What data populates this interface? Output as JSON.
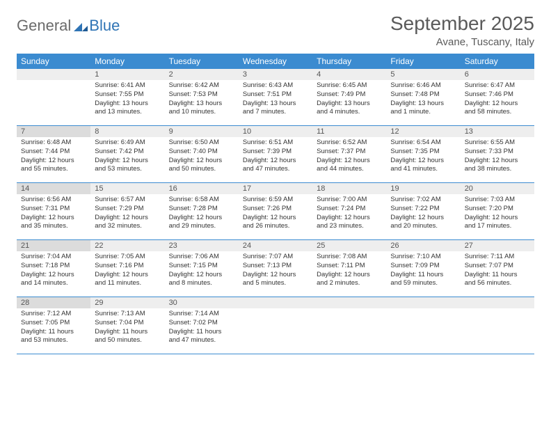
{
  "logo": {
    "general": "General",
    "blue": "Blue"
  },
  "title": "September 2025",
  "location": "Avane, Tuscany, Italy",
  "colors": {
    "header_bg": "#3b8bd0",
    "header_text": "#ffffff",
    "daynum_bg": "#eeeeee",
    "daynum_bg_dark": "#dcdcdc",
    "border": "#3b8bd0",
    "text": "#333333",
    "title_text": "#5a5a5a",
    "logo_gray": "#6b6b6b",
    "logo_blue": "#2f74b5"
  },
  "weekdays": [
    "Sunday",
    "Monday",
    "Tuesday",
    "Wednesday",
    "Thursday",
    "Friday",
    "Saturday"
  ],
  "weeks": [
    [
      {
        "blank": true
      },
      {
        "day": "1",
        "sunrise": "6:41 AM",
        "sunset": "7:55 PM",
        "daylight": "13 hours and 13 minutes."
      },
      {
        "day": "2",
        "sunrise": "6:42 AM",
        "sunset": "7:53 PM",
        "daylight": "13 hours and 10 minutes."
      },
      {
        "day": "3",
        "sunrise": "6:43 AM",
        "sunset": "7:51 PM",
        "daylight": "13 hours and 7 minutes."
      },
      {
        "day": "4",
        "sunrise": "6:45 AM",
        "sunset": "7:49 PM",
        "daylight": "13 hours and 4 minutes."
      },
      {
        "day": "5",
        "sunrise": "6:46 AM",
        "sunset": "7:48 PM",
        "daylight": "13 hours and 1 minute."
      },
      {
        "day": "6",
        "sunrise": "6:47 AM",
        "sunset": "7:46 PM",
        "daylight": "12 hours and 58 minutes."
      }
    ],
    [
      {
        "day": "7",
        "dark": true,
        "sunrise": "6:48 AM",
        "sunset": "7:44 PM",
        "daylight": "12 hours and 55 minutes."
      },
      {
        "day": "8",
        "sunrise": "6:49 AM",
        "sunset": "7:42 PM",
        "daylight": "12 hours and 53 minutes."
      },
      {
        "day": "9",
        "sunrise": "6:50 AM",
        "sunset": "7:40 PM",
        "daylight": "12 hours and 50 minutes."
      },
      {
        "day": "10",
        "sunrise": "6:51 AM",
        "sunset": "7:39 PM",
        "daylight": "12 hours and 47 minutes."
      },
      {
        "day": "11",
        "sunrise": "6:52 AM",
        "sunset": "7:37 PM",
        "daylight": "12 hours and 44 minutes."
      },
      {
        "day": "12",
        "sunrise": "6:54 AM",
        "sunset": "7:35 PM",
        "daylight": "12 hours and 41 minutes."
      },
      {
        "day": "13",
        "sunrise": "6:55 AM",
        "sunset": "7:33 PM",
        "daylight": "12 hours and 38 minutes."
      }
    ],
    [
      {
        "day": "14",
        "dark": true,
        "sunrise": "6:56 AM",
        "sunset": "7:31 PM",
        "daylight": "12 hours and 35 minutes."
      },
      {
        "day": "15",
        "sunrise": "6:57 AM",
        "sunset": "7:29 PM",
        "daylight": "12 hours and 32 minutes."
      },
      {
        "day": "16",
        "sunrise": "6:58 AM",
        "sunset": "7:28 PM",
        "daylight": "12 hours and 29 minutes."
      },
      {
        "day": "17",
        "sunrise": "6:59 AM",
        "sunset": "7:26 PM",
        "daylight": "12 hours and 26 minutes."
      },
      {
        "day": "18",
        "sunrise": "7:00 AM",
        "sunset": "7:24 PM",
        "daylight": "12 hours and 23 minutes."
      },
      {
        "day": "19",
        "sunrise": "7:02 AM",
        "sunset": "7:22 PM",
        "daylight": "12 hours and 20 minutes."
      },
      {
        "day": "20",
        "sunrise": "7:03 AM",
        "sunset": "7:20 PM",
        "daylight": "12 hours and 17 minutes."
      }
    ],
    [
      {
        "day": "21",
        "dark": true,
        "sunrise": "7:04 AM",
        "sunset": "7:18 PM",
        "daylight": "12 hours and 14 minutes."
      },
      {
        "day": "22",
        "sunrise": "7:05 AM",
        "sunset": "7:16 PM",
        "daylight": "12 hours and 11 minutes."
      },
      {
        "day": "23",
        "sunrise": "7:06 AM",
        "sunset": "7:15 PM",
        "daylight": "12 hours and 8 minutes."
      },
      {
        "day": "24",
        "sunrise": "7:07 AM",
        "sunset": "7:13 PM",
        "daylight": "12 hours and 5 minutes."
      },
      {
        "day": "25",
        "sunrise": "7:08 AM",
        "sunset": "7:11 PM",
        "daylight": "12 hours and 2 minutes."
      },
      {
        "day": "26",
        "sunrise": "7:10 AM",
        "sunset": "7:09 PM",
        "daylight": "11 hours and 59 minutes."
      },
      {
        "day": "27",
        "sunrise": "7:11 AM",
        "sunset": "7:07 PM",
        "daylight": "11 hours and 56 minutes."
      }
    ],
    [
      {
        "day": "28",
        "dark": true,
        "sunrise": "7:12 AM",
        "sunset": "7:05 PM",
        "daylight": "11 hours and 53 minutes."
      },
      {
        "day": "29",
        "sunrise": "7:13 AM",
        "sunset": "7:04 PM",
        "daylight": "11 hours and 50 minutes."
      },
      {
        "day": "30",
        "sunrise": "7:14 AM",
        "sunset": "7:02 PM",
        "daylight": "11 hours and 47 minutes."
      },
      {
        "blank": true
      },
      {
        "blank": true
      },
      {
        "blank": true
      },
      {
        "blank": true
      }
    ]
  ],
  "labels": {
    "sunrise": "Sunrise:",
    "sunset": "Sunset:",
    "daylight": "Daylight:"
  }
}
